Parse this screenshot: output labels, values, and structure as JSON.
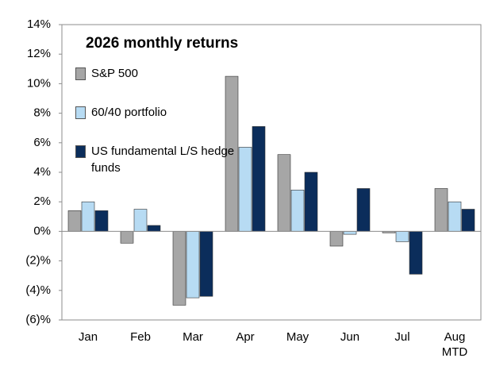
{
  "chart_data": {
    "type": "bar",
    "title": "2026 monthly returns",
    "categories": [
      "Jan",
      "Feb",
      "Mar",
      "Apr",
      "May",
      "Jun",
      "Jul",
      "Aug MTD"
    ],
    "series": [
      {
        "name": "S&P 500",
        "color": "#a6a6a6",
        "values": [
          1.4,
          -0.8,
          -5.0,
          10.5,
          5.2,
          -1.0,
          -0.1,
          2.9
        ]
      },
      {
        "name": "60/40 portfolio",
        "color": "#b7dbf3",
        "values": [
          2.0,
          1.5,
          -4.5,
          5.7,
          2.8,
          -0.2,
          -0.7,
          2.0
        ]
      },
      {
        "name": "US fundamental L/S hedge funds",
        "color": "#0b2d5b",
        "values": [
          1.4,
          0.4,
          -4.4,
          7.1,
          4.0,
          2.9,
          -2.9,
          1.5
        ]
      }
    ],
    "ylim": [
      -6,
      14
    ],
    "yticks": [
      {
        "value": -6,
        "label": "(6)%"
      },
      {
        "value": -4,
        "label": "(4)%"
      },
      {
        "value": -2,
        "label": "(2)%"
      },
      {
        "value": 0,
        "label": "0%"
      },
      {
        "value": 2,
        "label": "2%"
      },
      {
        "value": 4,
        "label": "4%"
      },
      {
        "value": 6,
        "label": "6%"
      },
      {
        "value": 8,
        "label": "8%"
      },
      {
        "value": 10,
        "label": "10%"
      },
      {
        "value": 12,
        "label": "12%"
      },
      {
        "value": 14,
        "label": "14%"
      }
    ],
    "legend": "top-left"
  }
}
